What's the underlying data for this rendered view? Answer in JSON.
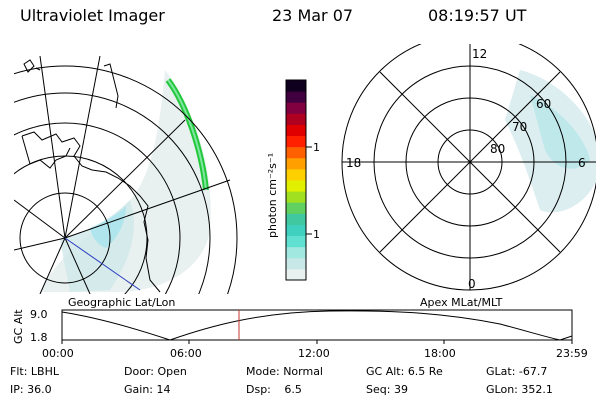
{
  "header": {
    "instrument": "Ultraviolet Imager",
    "date": "23 Mar 07",
    "time": "08:19:57 UT"
  },
  "left_panel": {
    "caption": "Geographic Lat/Lon"
  },
  "right_panel": {
    "caption": "Apex MLat/MLT",
    "mlt_labels": [
      "12",
      "6",
      "0",
      "18"
    ],
    "lat_labels": [
      "60",
      "70",
      "80"
    ]
  },
  "colorbar": {
    "label": "photon cm⁻²s⁻¹",
    "ticks": [
      "100",
      "10"
    ],
    "colors": [
      "#e8f0f0",
      "#c8e8e8",
      "#a0e8e0",
      "#60e0d0",
      "#40d0c0",
      "#40c8a0",
      "#60d060",
      "#a0e020",
      "#e0f000",
      "#ffd000",
      "#ffa000",
      "#ff6000",
      "#ff2000",
      "#e00000",
      "#b00020",
      "#800040",
      "#400040",
      "#100020"
    ]
  },
  "altitude_plot": {
    "ylabel": "GC Alt",
    "y_ticks": [
      "9.0",
      "1.8"
    ],
    "x_ticks": [
      "00:00",
      "06:00",
      "12:00",
      "18:00",
      "23:59"
    ],
    "marker_time_hours": 8.33
  },
  "info": {
    "flt_label": "Flt:",
    "flt_value": "LBHL",
    "door_label": "Door:",
    "door_value": "Open",
    "mode_label": "Mode:",
    "mode_value": "Normal",
    "gcalt_label": "GC Alt:",
    "gcalt_value": "6.5 Re",
    "glat_label": "GLat:",
    "glat_value": "-67.7",
    "ip_label": "IP:",
    "ip_value": "36.0",
    "gain_label": "Gain:",
    "gain_value": "14",
    "dsp_label": "Dsp:",
    "dsp_value": "6.5",
    "seq_label": "Seq:",
    "seq_value": "39",
    "glon_label": "GLon:",
    "glon_value": "352.1"
  }
}
